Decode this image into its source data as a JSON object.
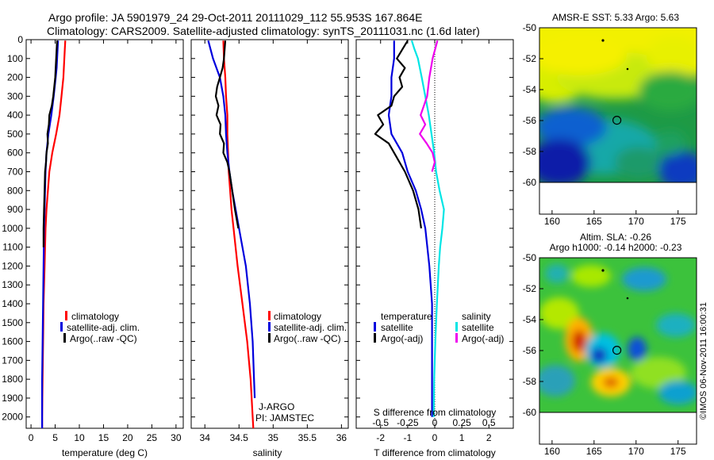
{
  "title": {
    "line1": "Argo profile: JA 5901979_24 29-Oct-2011 20111029_112 55.953S 167.864E",
    "line2": "Climatology: CARS2009. Satellite-adjusted climatology: synTS_20111031.nc (1.6d later)"
  },
  "colors": {
    "climatology": "#ff0000",
    "satellite": "#0000dd",
    "argo": "#000000",
    "sat_salinity": "#00e5e5",
    "argo_salinity": "#ee00ee"
  },
  "chart_data": [
    {
      "id": "temperature",
      "type": "line",
      "xlabel": "temperature (deg C)",
      "ylabel": "",
      "xlim": [
        -1,
        31.5
      ],
      "ylim": [
        2060,
        0
      ],
      "xticks": [
        0,
        5,
        10,
        15,
        20,
        25,
        30
      ],
      "yticks": [
        0,
        100,
        200,
        300,
        400,
        500,
        600,
        700,
        800,
        900,
        1000,
        1100,
        1200,
        1300,
        1400,
        1500,
        1600,
        1700,
        1800,
        1900,
        2000
      ],
      "legend": [
        "climatology",
        "satellite-adj. clim.",
        "Argo(..raw -QC)"
      ],
      "series": [
        {
          "name": "climatology",
          "color": "#ff0000",
          "depth": [
            5,
            50,
            100,
            150,
            200,
            300,
            400,
            500,
            600,
            700,
            800,
            900,
            1000,
            1200,
            1400,
            1600,
            1800,
            2000,
            2060
          ],
          "values": [
            7.1,
            7.0,
            6.9,
            6.8,
            6.7,
            6.3,
            5.9,
            5.2,
            4.4,
            3.8,
            3.5,
            3.2,
            3.0,
            2.8,
            2.6,
            2.5,
            2.4,
            2.3,
            2.3
          ]
        },
        {
          "name": "satellite-adj. clim.",
          "color": "#0000dd",
          "depth": [
            5,
            50,
            100,
            150,
            200,
            300,
            400,
            500,
            600,
            700,
            800,
            900,
            1000,
            1200,
            1400,
            1600,
            1800,
            2000,
            2060
          ],
          "values": [
            5.6,
            5.5,
            5.4,
            5.3,
            5.1,
            4.7,
            4.2,
            3.6,
            3.2,
            3.0,
            2.9,
            2.8,
            2.7,
            2.6,
            2.5,
            2.4,
            2.3,
            2.3,
            2.3
          ]
        },
        {
          "name": "Argo(..raw -QC)",
          "color": "#000000",
          "depth": [
            5,
            50,
            100,
            150,
            200,
            300,
            350,
            400,
            450,
            500,
            550,
            600,
            650,
            700,
            800,
            900,
            1000,
            1100
          ],
          "values": [
            5.4,
            5.3,
            5.2,
            5.1,
            5.0,
            4.6,
            4.3,
            3.8,
            3.7,
            3.4,
            3.5,
            3.2,
            3.1,
            2.9,
            2.8,
            2.7,
            2.6,
            2.6
          ]
        }
      ],
      "annotations": []
    },
    {
      "id": "salinity",
      "type": "line",
      "xlabel": "salinity",
      "ylabel": "",
      "xlim": [
        33.8,
        36.1
      ],
      "ylim": [
        2060,
        0
      ],
      "xticks": [
        34,
        34.5,
        35,
        35.5,
        36
      ],
      "yticks": [],
      "legend": [
        "climatology",
        "satellite-adj. clim.",
        "Argo(..raw -QC)"
      ],
      "series": [
        {
          "name": "climatology",
          "color": "#ff0000",
          "depth": [
            5,
            100,
            200,
            300,
            400,
            500,
            600,
            700,
            800,
            900,
            1000,
            1200,
            1400,
            1600,
            1800,
            2000,
            2060
          ],
          "values": [
            34.27,
            34.28,
            34.3,
            34.31,
            34.33,
            34.33,
            34.34,
            34.35,
            34.37,
            34.39,
            34.42,
            34.48,
            34.55,
            34.62,
            34.67,
            34.7,
            34.71
          ]
        },
        {
          "name": "satellite-adj. clim.",
          "color": "#0000dd",
          "depth": [
            5,
            100,
            200,
            300,
            400,
            500,
            600,
            700,
            800,
            900,
            1000,
            1200,
            1400,
            1600,
            1800,
            1900
          ],
          "values": [
            34.05,
            34.12,
            34.22,
            34.27,
            34.3,
            34.31,
            34.33,
            34.36,
            34.4,
            34.45,
            34.5,
            34.6,
            34.66,
            34.7,
            34.72,
            34.73
          ]
        },
        {
          "name": "Argo(..raw -QC)",
          "color": "#000000",
          "depth": [
            5,
            100,
            150,
            200,
            250,
            300,
            350,
            400,
            450,
            500,
            550,
            600,
            650,
            700,
            800,
            900,
            1000
          ],
          "values": [
            34.3,
            34.28,
            34.26,
            34.22,
            34.18,
            34.16,
            34.2,
            34.17,
            34.23,
            34.22,
            34.28,
            34.27,
            34.33,
            34.36,
            34.4,
            34.44,
            34.49
          ]
        }
      ],
      "annotations": [
        "J-ARGO",
        "PI: JAMSTEC"
      ]
    },
    {
      "id": "difference",
      "type": "line",
      "xlabel": "T difference from climatology",
      "x2label": "S difference from climatology",
      "ylabel": "",
      "xlim": [
        -2.9,
        2.9
      ],
      "ylim": [
        2060,
        0
      ],
      "xticks": [
        -2,
        -1,
        0,
        1,
        2
      ],
      "x2ticks_labels": [
        "-0.5",
        "-0.25",
        "0",
        "0.25",
        "0.5"
      ],
      "x2ticks": [
        -2,
        -1,
        0,
        1,
        2
      ],
      "legend_temperature": {
        "title": "temperature",
        "items": [
          "satellite",
          "Argo(-adj)"
        ]
      },
      "legend_salinity": {
        "title": "salinity",
        "items": [
          "satellite",
          "Argo(-adj)"
        ]
      },
      "series": [
        {
          "name": "satellite",
          "group": "temperature",
          "color": "#0000dd",
          "depth": [
            5,
            100,
            200,
            300,
            400,
            500,
            600,
            700,
            800,
            900,
            1000,
            1200,
            1400,
            1600,
            1800,
            2000
          ],
          "values": [
            -1.5,
            -1.5,
            -1.6,
            -1.6,
            -1.7,
            -1.6,
            -1.2,
            -1.0,
            -0.7,
            -0.5,
            -0.35,
            -0.2,
            -0.1,
            -0.1,
            -0.1,
            -0.1
          ]
        },
        {
          "name": "Argo(-adj)",
          "group": "temperature",
          "color": "#000000",
          "depth": [
            5,
            100,
            150,
            200,
            250,
            300,
            350,
            400,
            450,
            500,
            550,
            600,
            700,
            800,
            900,
            1000
          ],
          "values": [
            -1.0,
            -1.4,
            -1.1,
            -1.3,
            -1.2,
            -1.5,
            -1.6,
            -2.1,
            -1.9,
            -2.2,
            -1.7,
            -1.5,
            -1.1,
            -0.8,
            -0.6,
            -0.5
          ]
        },
        {
          "name": "satellite",
          "group": "salinity",
          "color": "#00e5e5",
          "depth": [
            5,
            50,
            100,
            200,
            300,
            400,
            500,
            600,
            700,
            800,
            900,
            1000,
            1100,
            1200,
            1400,
            1600,
            1800,
            2000
          ],
          "values": [
            -0.85,
            -0.75,
            -0.62,
            -0.48,
            -0.35,
            -0.22,
            -0.12,
            -0.02,
            0.05,
            0.18,
            0.34,
            0.28,
            0.2,
            0.15,
            0.08,
            0.02,
            -0.02,
            -0.04
          ]
        },
        {
          "name": "Argo(-adj)",
          "group": "salinity",
          "color": "#ee00ee",
          "depth": [
            5,
            100,
            200,
            300,
            350,
            400,
            450,
            500,
            550,
            600,
            650,
            700
          ],
          "values": [
            0.1,
            -0.08,
            -0.2,
            -0.28,
            -0.4,
            -0.52,
            -0.35,
            -0.55,
            -0.3,
            -0.08,
            0.0,
            -0.1
          ]
        }
      ],
      "annotations": []
    }
  ],
  "maps": [
    {
      "id": "sst",
      "title_lines": [
        "AMSR-E SST: 5.33 Argo: 5.63"
      ],
      "xticks": [
        160,
        165,
        170,
        175
      ],
      "yticks": [
        -50,
        -52,
        -54,
        -56,
        -58,
        -60
      ],
      "marker": {
        "lon": 167.864,
        "lat": -55.953
      }
    },
    {
      "id": "sla",
      "title_lines": [
        "Altim. SLA: -0.26",
        "Argo h1000: -0.14 h2000: -0.23"
      ],
      "xticks": [
        160,
        165,
        170,
        175
      ],
      "yticks": [
        -50,
        -52,
        -54,
        -56,
        -58,
        -60
      ],
      "marker": {
        "lon": 167.864,
        "lat": -55.953
      }
    }
  ],
  "credit": "©IMOS 06-Nov-2011 16:00:31"
}
